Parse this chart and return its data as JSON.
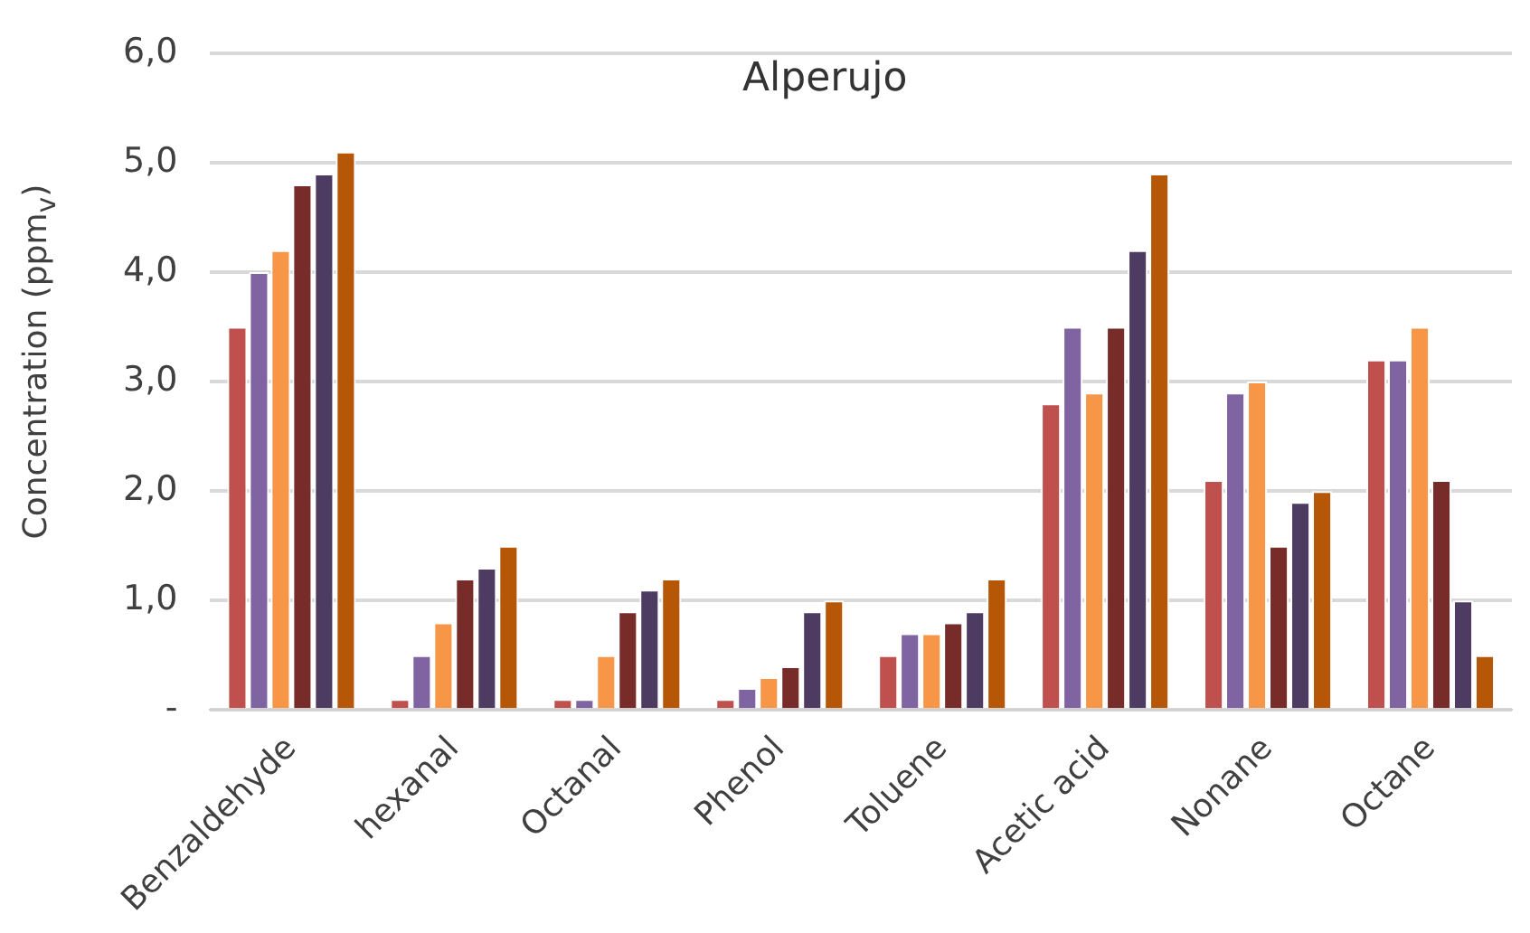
{
  "chart_data": {
    "type": "bar",
    "title": "Alperujo",
    "ylabel": "Concentration (ppm$_{v}$)",
    "categories": [
      "Benzaldehyde",
      "hexanal",
      "Octanal",
      "Phenol",
      "Toluene",
      "Acetic acid",
      "Nonane",
      "Octane"
    ],
    "series": [
      {
        "color": "#c0504d",
        "values": [
          3.5,
          0.1,
          0.1,
          0.1,
          0.5,
          2.8,
          2.1,
          3.2
        ]
      },
      {
        "color": "#8064a2",
        "values": [
          4.0,
          0.5,
          0.1,
          0.2,
          0.7,
          3.5,
          2.9,
          3.2
        ]
      },
      {
        "color": "#f79646",
        "values": [
          4.2,
          0.8,
          0.5,
          0.3,
          0.7,
          2.9,
          3.0,
          3.5
        ]
      },
      {
        "color": "#772c2a",
        "values": [
          4.8,
          1.2,
          0.9,
          0.4,
          0.8,
          3.5,
          1.5,
          2.1
        ]
      },
      {
        "color": "#4d3b62",
        "values": [
          4.9,
          1.3,
          1.1,
          0.9,
          0.9,
          4.2,
          1.9,
          1.0
        ]
      },
      {
        "color": "#b65708",
        "values": [
          5.1,
          1.5,
          1.2,
          1.0,
          1.2,
          4.9,
          2.0,
          0.5
        ]
      }
    ],
    "ylim": [
      0,
      6
    ],
    "yticks": [
      {
        "value": 0,
        "label": "-"
      },
      {
        "value": 1,
        "label": "1,0"
      },
      {
        "value": 2,
        "label": "2,0"
      },
      {
        "value": 3,
        "label": "3,0"
      },
      {
        "value": 4,
        "label": "4,0"
      },
      {
        "value": 5,
        "label": "5,0"
      },
      {
        "value": 6,
        "label": "6,0"
      }
    ],
    "grid": "y",
    "legend": false
  }
}
